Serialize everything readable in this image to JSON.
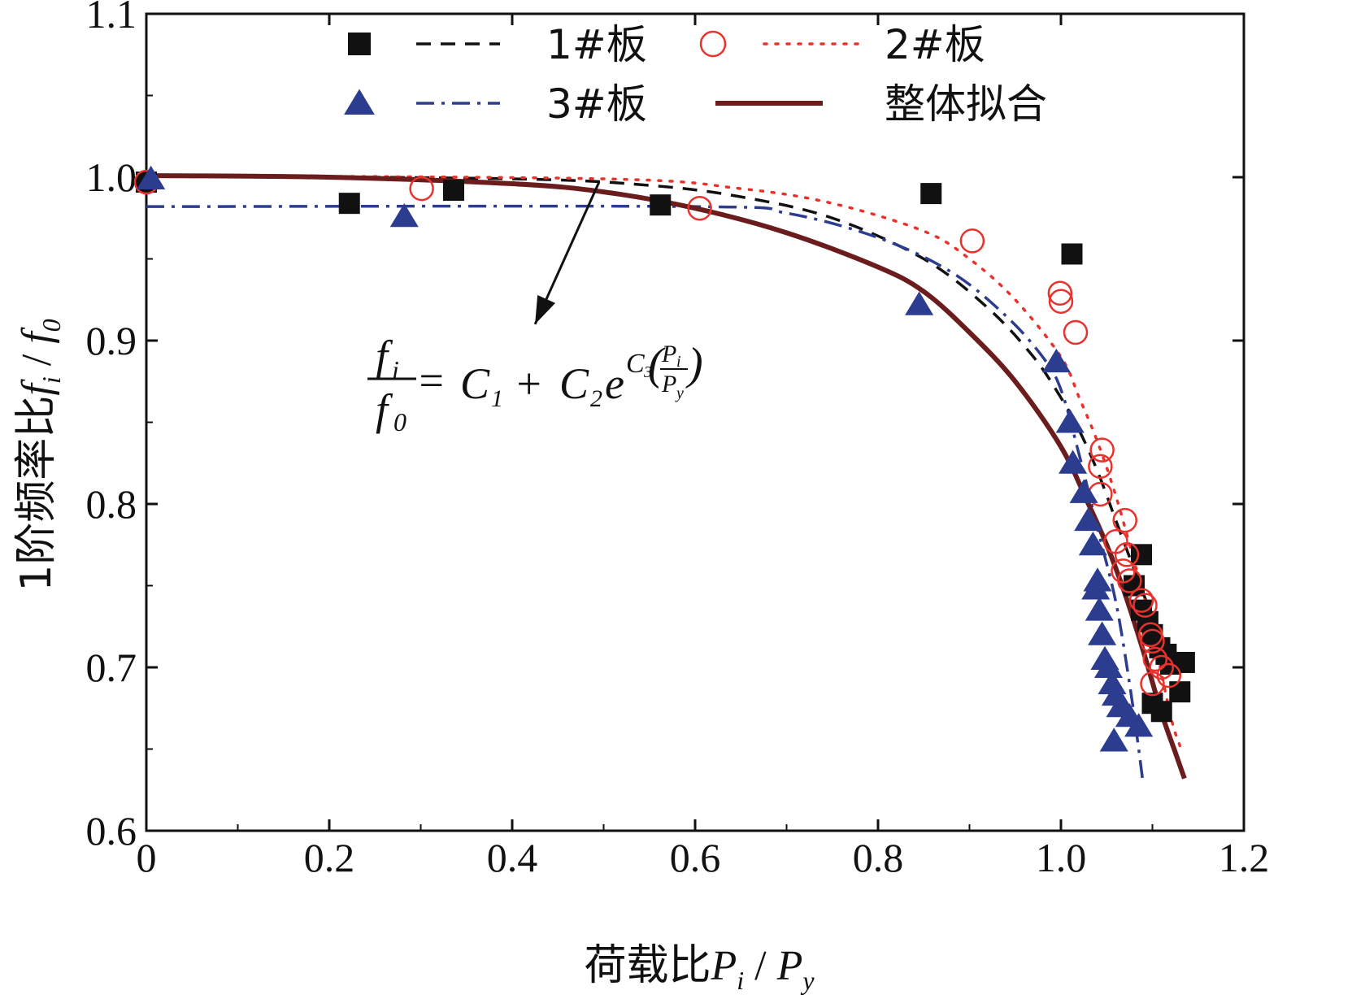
{
  "chart_data": {
    "type": "scatter",
    "title": "",
    "xlabel": "荷载比P_i / P_y",
    "xlabel_parts": {
      "prefix": "荷载比",
      "var1": "P",
      "sub1": "i",
      "sep": " / ",
      "var2": "P",
      "sub2": "y"
    },
    "ylabel": "1阶频率比f_i / f_0",
    "ylabel_parts": {
      "prefix": "1阶频率比",
      "var1": "f",
      "sub1": "i",
      "sep": " / ",
      "var2": "f",
      "sub2": "0"
    },
    "xlim": [
      0,
      1.2
    ],
    "ylim": [
      0.6,
      1.1
    ],
    "x_ticks": [
      0,
      0.2,
      0.4,
      0.6,
      0.8,
      1.0,
      1.2
    ],
    "x_tick_labels": [
      "0",
      "0.2",
      "0.4",
      "0.6",
      "0.8",
      "1.0",
      "1.2"
    ],
    "y_ticks": [
      0.6,
      0.7,
      0.8,
      0.9,
      1.0,
      1.1
    ],
    "y_tick_labels": [
      "0.6",
      "0.7",
      "0.8",
      "0.9",
      "1.0",
      "1.1"
    ],
    "grid": false,
    "legend_position": "top",
    "colors": {
      "series1": "#111111",
      "series2": "#e8322d",
      "series3": "#2c3d8f",
      "overall": "#6b1d1d"
    },
    "series": [
      {
        "name": "1#板",
        "marker": "square",
        "points": [
          [
            0.0,
            0.997
          ],
          [
            0.222,
            0.984
          ],
          [
            0.336,
            0.992
          ],
          [
            0.562,
            0.983
          ],
          [
            0.858,
            0.99
          ],
          [
            1.012,
            0.953
          ],
          [
            1.088,
            0.769
          ],
          [
            1.08,
            0.75
          ],
          [
            1.088,
            0.735
          ],
          [
            1.095,
            0.728
          ],
          [
            1.1,
            0.72
          ],
          [
            1.108,
            0.712
          ],
          [
            1.115,
            0.708
          ],
          [
            1.12,
            0.702
          ],
          [
            1.135,
            0.703
          ],
          [
            1.13,
            0.685
          ],
          [
            1.1,
            0.678
          ],
          [
            1.11,
            0.673
          ]
        ]
      },
      {
        "name": "2#板",
        "marker": "circle",
        "points": [
          [
            0.0,
            0.997
          ],
          [
            0.301,
            0.993
          ],
          [
            0.605,
            0.981
          ],
          [
            0.903,
            0.961
          ],
          [
            0.999,
            0.929
          ],
          [
            1.0,
            0.924
          ],
          [
            1.016,
            0.905
          ],
          [
            1.045,
            0.833
          ],
          [
            1.043,
            0.823
          ],
          [
            1.043,
            0.806
          ],
          [
            1.07,
            0.79
          ],
          [
            1.06,
            0.777
          ],
          [
            1.072,
            0.769
          ],
          [
            1.068,
            0.759
          ],
          [
            1.075,
            0.753
          ],
          [
            1.088,
            0.741
          ],
          [
            1.092,
            0.738
          ],
          [
            1.098,
            0.72
          ],
          [
            1.1,
            0.716
          ],
          [
            1.103,
            0.705
          ],
          [
            1.11,
            0.7
          ],
          [
            1.118,
            0.695
          ],
          [
            1.1,
            0.69
          ]
        ]
      },
      {
        "name": "3#板",
        "marker": "triangle",
        "points": [
          [
            0.005,
            0.999
          ],
          [
            0.282,
            0.976
          ],
          [
            0.845,
            0.922
          ],
          [
            0.995,
            0.887
          ],
          [
            1.01,
            0.85
          ],
          [
            1.013,
            0.825
          ],
          [
            1.025,
            0.807
          ],
          [
            1.03,
            0.79
          ],
          [
            1.035,
            0.775
          ],
          [
            1.04,
            0.753
          ],
          [
            1.038,
            0.748
          ],
          [
            1.042,
            0.735
          ],
          [
            1.045,
            0.72
          ],
          [
            1.048,
            0.705
          ],
          [
            1.052,
            0.7
          ],
          [
            1.056,
            0.69
          ],
          [
            1.06,
            0.683
          ],
          [
            1.065,
            0.676
          ],
          [
            1.075,
            0.67
          ],
          [
            1.085,
            0.664
          ],
          [
            1.058,
            0.655
          ]
        ]
      }
    ],
    "fit_curves": [
      {
        "name": "1#板",
        "style": "dashed",
        "points": [
          [
            0.0,
            1.001
          ],
          [
            0.4,
            0.999
          ],
          [
            0.55,
            0.995
          ],
          [
            0.65,
            0.988
          ],
          [
            0.75,
            0.975
          ],
          [
            0.85,
            0.95
          ],
          [
            0.92,
            0.92
          ],
          [
            0.97,
            0.89
          ],
          [
            1.0,
            0.865
          ],
          [
            1.02,
            0.845
          ],
          [
            1.04,
            0.82
          ],
          [
            1.06,
            0.79
          ],
          [
            1.08,
            0.76
          ],
          [
            1.1,
            0.73
          ],
          [
            1.12,
            0.695
          ]
        ]
      },
      {
        "name": "2#板",
        "style": "dotted",
        "points": [
          [
            0.0,
            1.001
          ],
          [
            0.5,
            0.999
          ],
          [
            0.65,
            0.993
          ],
          [
            0.75,
            0.984
          ],
          [
            0.85,
            0.967
          ],
          [
            0.9,
            0.95
          ],
          [
            0.95,
            0.925
          ],
          [
            1.0,
            0.89
          ],
          [
            1.02,
            0.865
          ],
          [
            1.04,
            0.838
          ],
          [
            1.06,
            0.805
          ],
          [
            1.08,
            0.765
          ],
          [
            1.1,
            0.722
          ],
          [
            1.12,
            0.67
          ],
          [
            1.13,
            0.652
          ]
        ]
      },
      {
        "name": "3#板",
        "style": "dash-dot",
        "points": [
          [
            0.0,
            0.982
          ],
          [
            0.6,
            0.982
          ],
          [
            0.7,
            0.978
          ],
          [
            0.8,
            0.963
          ],
          [
            0.88,
            0.942
          ],
          [
            0.94,
            0.915
          ],
          [
            0.98,
            0.89
          ],
          [
            1.0,
            0.87
          ],
          [
            1.02,
            0.83
          ],
          [
            1.04,
            0.785
          ],
          [
            1.06,
            0.74
          ],
          [
            1.075,
            0.69
          ],
          [
            1.085,
            0.65
          ],
          [
            1.09,
            0.628
          ]
        ]
      }
    ],
    "overall_fit": {
      "name": "整体拟合",
      "style": "solid",
      "points": [
        [
          0.0,
          1.001
        ],
        [
          0.2,
          1.0
        ],
        [
          0.4,
          0.996
        ],
        [
          0.5,
          0.991
        ],
        [
          0.6,
          0.981
        ],
        [
          0.7,
          0.966
        ],
        [
          0.8,
          0.945
        ],
        [
          0.85,
          0.93
        ],
        [
          0.9,
          0.905
        ],
        [
          0.95,
          0.875
        ],
        [
          1.0,
          0.835
        ],
        [
          1.03,
          0.8
        ],
        [
          1.05,
          0.775
        ],
        [
          1.07,
          0.745
        ],
        [
          1.09,
          0.71
        ],
        [
          1.11,
          0.672
        ],
        [
          1.125,
          0.648
        ],
        [
          1.135,
          0.632
        ]
      ]
    },
    "annotation": {
      "formula": {
        "lhs_num": "f",
        "lhs_num_sub": "i",
        "lhs_den": "f",
        "lhs_den_sub": "0",
        "eq": "=",
        "c1": "C",
        "c1_sub": "1",
        "plus": "+",
        "c2": "C",
        "c2_sub": "2",
        "e": "e",
        "c3": "C",
        "c3_sub": "3",
        "frac_num": "P",
        "frac_num_sub": "i",
        "frac_den": "P",
        "frac_den_sub": "y"
      },
      "arrow_from": [
        0.495,
        0.997
      ],
      "arrow_to": [
        0.425,
        0.91
      ]
    }
  }
}
